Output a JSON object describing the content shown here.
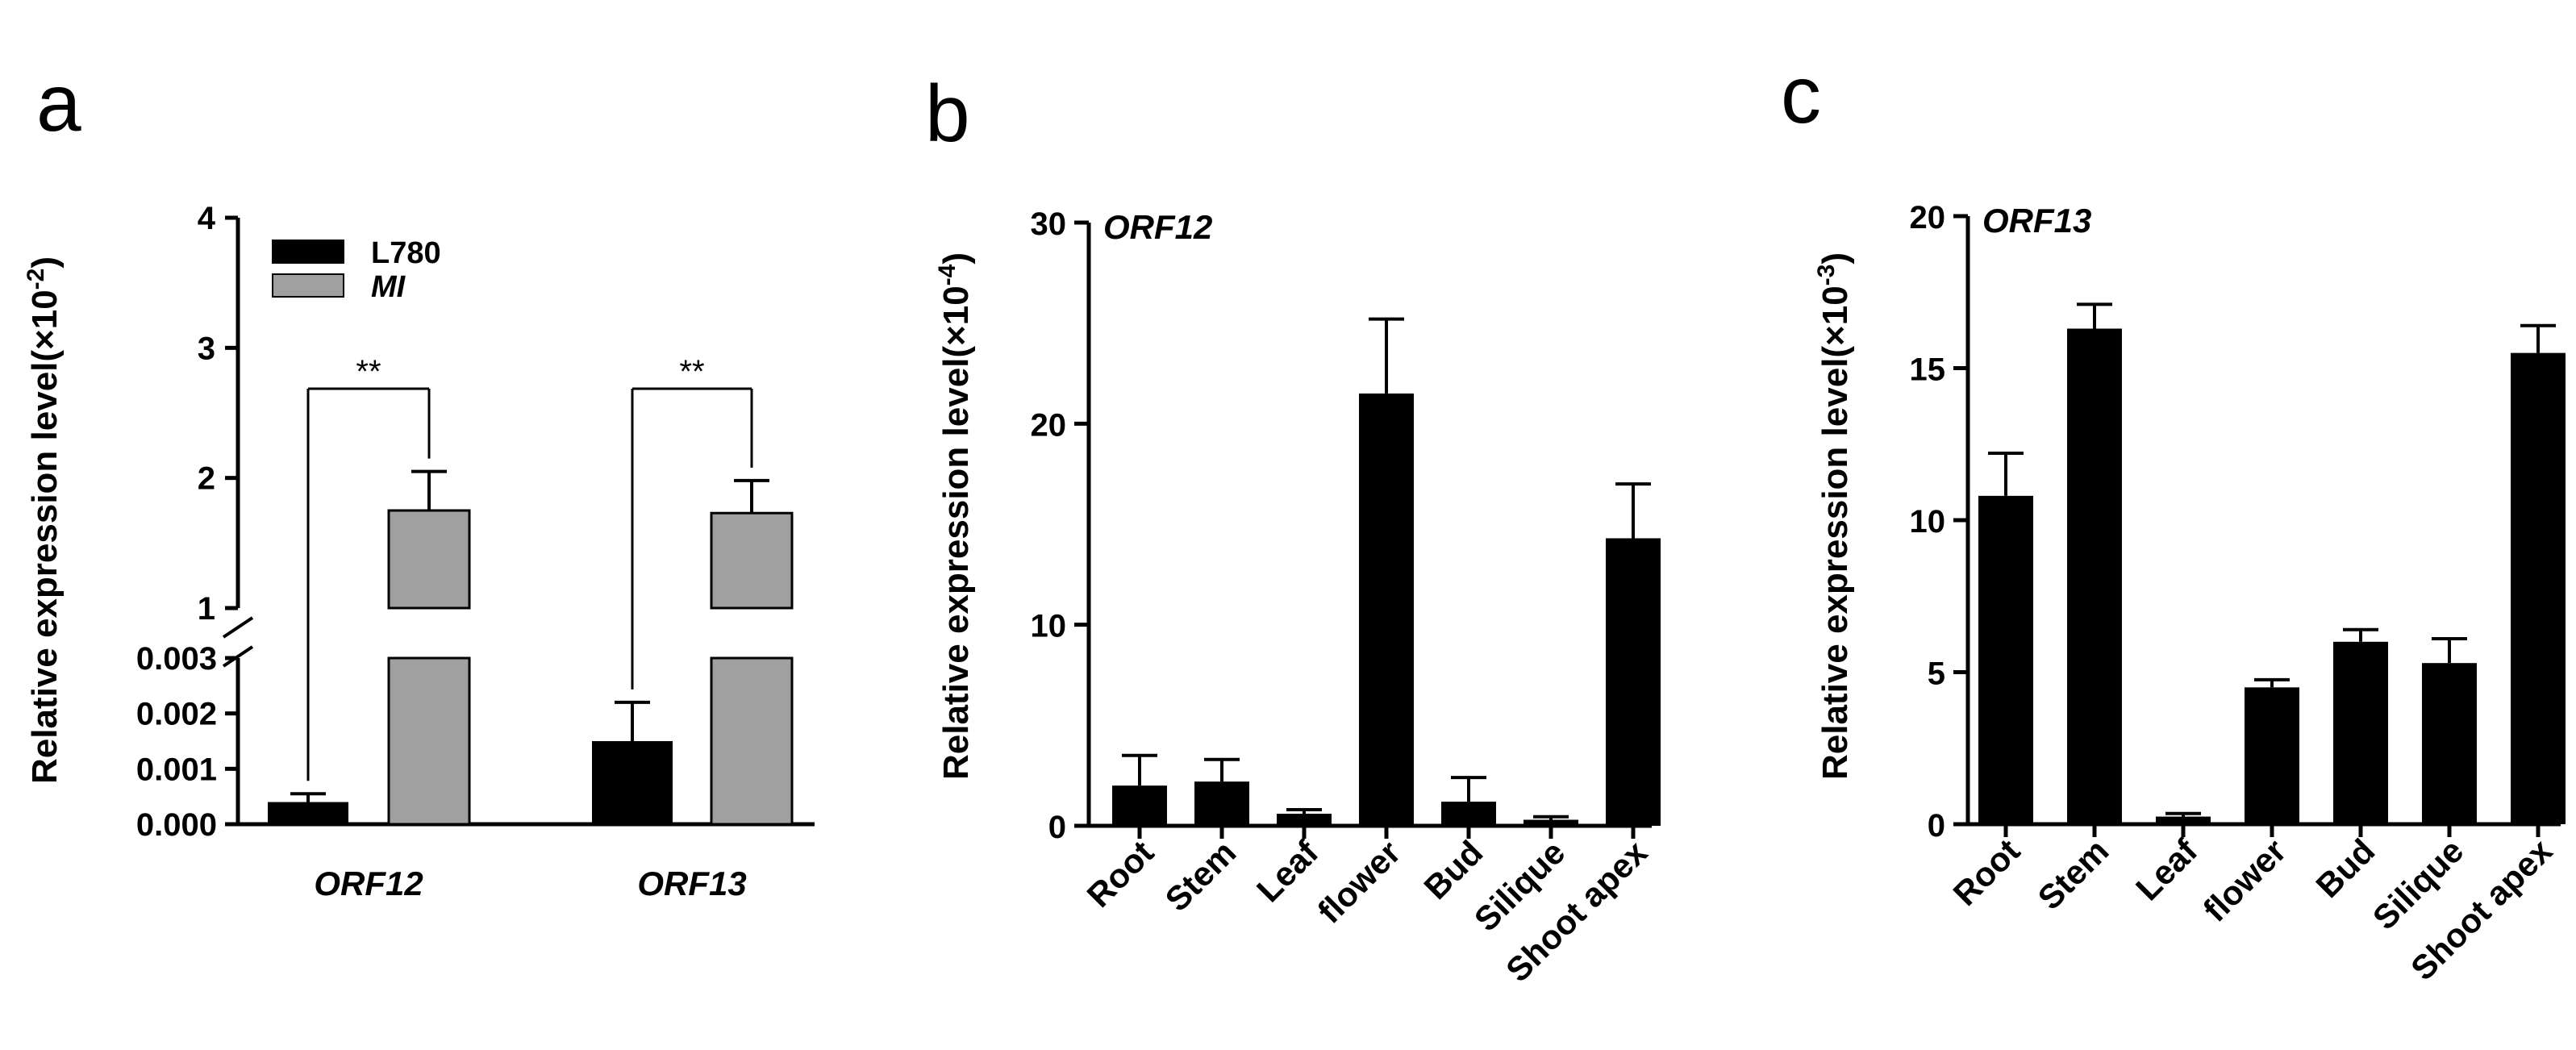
{
  "chart_data": [
    {
      "panel": "a",
      "type": "bar",
      "ylabel": "Relative expression level(×10",
      "ylabel_exp": "-2",
      "categories": [
        "ORF12",
        "ORF13"
      ],
      "series": [
        {
          "name": "L780",
          "color": "#000000",
          "values": [
            0.0004,
            0.0015
          ],
          "errors": [
            0.00015,
            0.0007
          ]
        },
        {
          "name": "MI",
          "color": "#a0a0a0",
          "values": [
            1.75,
            1.73
          ],
          "errors": [
            0.3,
            0.25
          ]
        }
      ],
      "axis_break": true,
      "lower_ylim": [
        0,
        0.003
      ],
      "lower_ticks": [
        "0.000",
        "0.001",
        "0.002",
        "0.003"
      ],
      "upper_ylim": [
        0,
        4
      ],
      "upper_ticks": [
        "1",
        "2",
        "3",
        "4"
      ],
      "significance": [
        "**",
        "**"
      ]
    },
    {
      "panel": "b",
      "type": "bar",
      "title": "ORF12",
      "ylabel": "Relative expression level(×10",
      "ylabel_exp": "-4",
      "categories": [
        "Root",
        "Stem",
        "Leaf",
        "flower",
        "Bud",
        "Silique",
        "Shoot apex"
      ],
      "values": [
        2.0,
        2.2,
        0.6,
        21.5,
        1.2,
        0.3,
        14.3
      ],
      "errors": [
        1.5,
        1.1,
        0.2,
        3.7,
        1.2,
        0.15,
        2.7
      ],
      "ylim": [
        0,
        30
      ],
      "ticks": [
        0,
        10,
        20,
        30
      ],
      "color": "#000000"
    },
    {
      "panel": "c",
      "type": "bar",
      "title": "ORF13",
      "ylabel": "Relative expression level(×10",
      "ylabel_exp": "-3",
      "categories": [
        "Root",
        "Stem",
        "Leaf",
        "flower",
        "Bud",
        "Silique",
        "Shoot apex"
      ],
      "values": [
        10.8,
        16.3,
        0.25,
        4.5,
        6.0,
        5.3,
        15.5
      ],
      "errors": [
        1.4,
        0.8,
        0.1,
        0.25,
        0.4,
        0.8,
        0.9
      ],
      "ylim": [
        0,
        20
      ],
      "ticks": [
        0,
        5,
        10,
        15,
        20
      ],
      "color": "#000000"
    }
  ]
}
